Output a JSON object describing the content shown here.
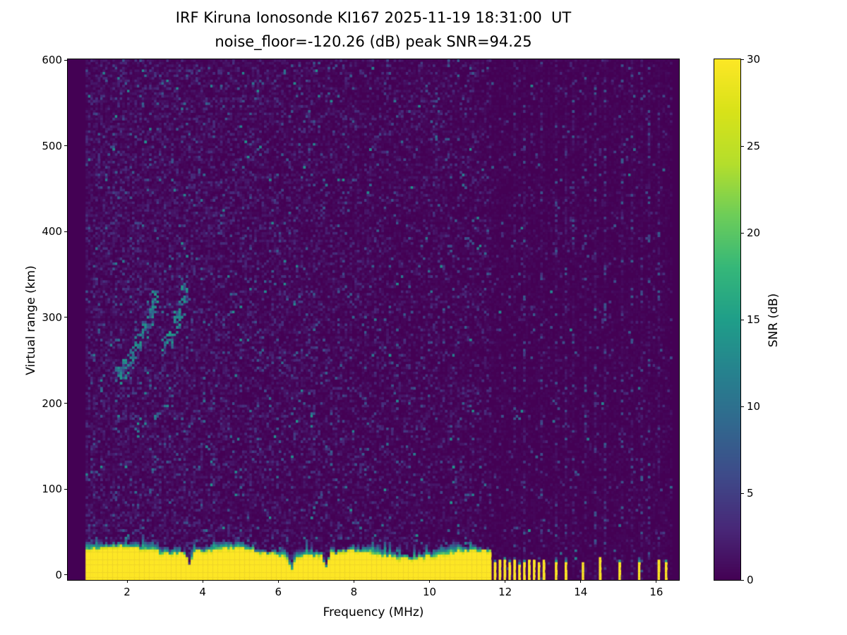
{
  "chart_data": {
    "type": "heatmap",
    "title": "IRF Kiruna Ionosonde KI167 2025-11-19 18:31:00  UT",
    "subtitle": "noise_floor=-120.26 (dB) peak SNR=94.25",
    "xlabel": "Frequency (MHz)",
    "ylabel": "Virtual range (km)",
    "xlim": [
      0.43,
      16.6
    ],
    "ylim": [
      -6,
      601
    ],
    "xticks": [
      2,
      4,
      6,
      8,
      10,
      12,
      14,
      16
    ],
    "yticks": [
      0,
      100,
      200,
      300,
      400,
      500,
      600
    ],
    "grid": false,
    "colorbar": {
      "label": "SNR (dB)",
      "min": 0,
      "max": 30,
      "ticks": [
        0,
        5,
        10,
        15,
        20,
        25,
        30
      ],
      "colormap": "viridis",
      "color_low": "#440154",
      "color_high": "#fde725"
    },
    "noise_floor_db": -120.26,
    "peak_snr_db": 94.25,
    "sweep": {
      "f_start": 0.9,
      "f_end": 16.42,
      "n_freq": 240,
      "n_range": 205
    },
    "features": {
      "ground_clutter_band": {
        "f_range": [
          0.9,
          11.62
        ],
        "top_km_mean": 27,
        "fringe_km_mean": 40,
        "snr_db": 30,
        "notch_freqs": [
          3.65,
          6.35,
          7.25
        ]
      },
      "rfi_bars": {
        "freqs": [
          11.72,
          11.85,
          11.98,
          12.1,
          12.22,
          12.35,
          12.48,
          12.6,
          12.75,
          12.88,
          13.0,
          13.3,
          13.55,
          14.03,
          14.5,
          14.97,
          15.5,
          16.0,
          16.2
        ],
        "top_km_min": 12,
        "top_km_max": 20,
        "snr_db": 30
      },
      "rfi_stripe_columns": [
        12.2,
        12.5,
        12.9,
        13.3,
        13.55,
        13.8,
        14.1,
        14.35,
        14.6,
        15.05,
        15.3,
        15.55,
        15.8,
        16.05
      ],
      "ionospheric_echo_trace": [
        [
          1.75,
          233
        ],
        [
          1.85,
          240
        ],
        [
          1.95,
          247
        ],
        [
          2.05,
          253
        ],
        [
          2.15,
          260
        ],
        [
          2.25,
          268
        ],
        [
          2.35,
          276
        ],
        [
          2.45,
          286
        ],
        [
          2.55,
          297
        ],
        [
          2.65,
          310
        ],
        [
          2.72,
          322
        ],
        [
          3.0,
          268
        ],
        [
          3.1,
          276
        ],
        [
          3.2,
          286
        ],
        [
          3.3,
          298
        ],
        [
          3.4,
          312
        ],
        [
          3.48,
          328
        ]
      ]
    }
  }
}
